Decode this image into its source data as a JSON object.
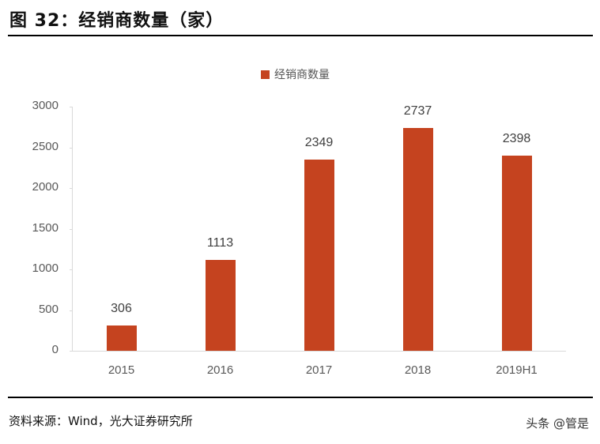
{
  "header": {
    "title": "图 32：经销商数量（家）"
  },
  "footer": {
    "source": "资料来源：Wind，光大证券研究所",
    "watermark": "头条 @管是"
  },
  "colors": {
    "bar": "#c5431f",
    "axis": "#d9d9d9"
  },
  "chart_data": {
    "type": "bar",
    "title": "经销商数量（家）",
    "categories": [
      "2015",
      "2016",
      "2017",
      "2018",
      "2019H1"
    ],
    "series": [
      {
        "name": "经销商数量",
        "values": [
          306,
          1113,
          2349,
          2737,
          2398
        ]
      }
    ],
    "value_labels": [
      "306",
      "1113",
      "2349",
      "2737",
      "2398"
    ],
    "yticks": [
      "0",
      "500",
      "1000",
      "1500",
      "2000",
      "2500",
      "3000"
    ],
    "xlabel": "",
    "ylabel": "",
    "ylim": [
      0,
      3000
    ],
    "grid": false,
    "legend_position": "top"
  }
}
